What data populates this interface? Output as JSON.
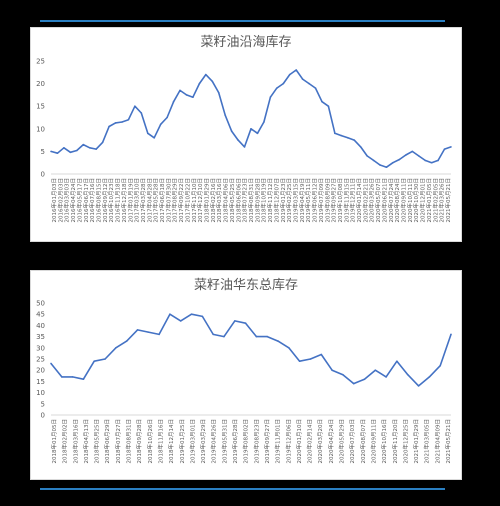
{
  "chart_data": [
    {
      "type": "line",
      "title": "菜籽油沿海库存",
      "ylim": [
        0,
        25
      ],
      "yticks": [
        0,
        5,
        10,
        15,
        20,
        25
      ],
      "grid": false,
      "legend": "none",
      "color": "#4472c4",
      "categories": [
        "2016年01月03日",
        "2016年02月03日",
        "2016年03月03日",
        "2016年04月24日",
        "2016年05月17日",
        "2016年06月17日",
        "2016年07月16日",
        "2016年08月15日",
        "2016年09月12日",
        "2016年10月23日",
        "2016年11月18日",
        "2016年12月18日",
        "2017年01月19日",
        "2017年03月10日",
        "2017年03月28日",
        "2017年04月28日",
        "2017年05月28日",
        "2017年06月18日",
        "2017年07月30日",
        "2017年08月29日",
        "2017年09月22日",
        "2017年10月22日",
        "2017年11月10日",
        "2017年12月10日",
        "2018年01月29日",
        "2018年02月16日",
        "2018年03月16日",
        "2018年04月06日",
        "2018年05月25日",
        "2018年06月06日",
        "2018年07月23日",
        "2018年08月31日",
        "2018年09月28日",
        "2018年10月19日",
        "2018年11月12日",
        "2018年12月07日",
        "2019年01月23日",
        "2019年02月25日",
        "2019年03月15日",
        "2019年04月19日",
        "2019年05月11日",
        "2019年06月12日",
        "2019年07月09日",
        "2019年08月09日",
        "2019年09月27日",
        "2019年10月08日",
        "2019年11月15日",
        "2019年12月11日",
        "2020年01月14日",
        "2020年02月21日",
        "2020年03月26日",
        "2020年05月07日",
        "2020年06月21日",
        "2020年07月24日",
        "2020年08月24日",
        "2020年09月11日",
        "2020年10月11日",
        "2020年10月30日",
        "2020年12月01日",
        "2021年01月05日",
        "2021年02月05日",
        "2021年03月26日",
        "2021年05月21日"
      ],
      "values": [
        5,
        4.6,
        5.8,
        4.8,
        5.2,
        6.5,
        5.8,
        5.5,
        7,
        10.5,
        11.3,
        11.5,
        12,
        15,
        13.5,
        9,
        8,
        11,
        12.5,
        16,
        18.5,
        17.5,
        17,
        20,
        22,
        20.5,
        18,
        13,
        9.5,
        7.5,
        6,
        10,
        9,
        11.5,
        17,
        19,
        20,
        22,
        23,
        21,
        20,
        19,
        16,
        15,
        9,
        8.5,
        8,
        7.5,
        6,
        4,
        3,
        2,
        1.5,
        2.5,
        3.2,
        4.2,
        5,
        4,
        3,
        2.5,
        3,
        5.5,
        6
      ]
    },
    {
      "type": "line",
      "title": "菜籽油华东总库存",
      "ylim": [
        0,
        50
      ],
      "yticks": [
        0,
        5,
        10,
        15,
        20,
        25,
        30,
        35,
        40,
        45,
        50
      ],
      "grid": false,
      "legend": "none",
      "color": "#4472c4",
      "categories": [
        "2018年01月05日",
        "2018年02月02日",
        "2018年03月16日",
        "2018年04月13日",
        "2018年05月25日",
        "2018年06月29日",
        "2018年07月27日",
        "2018年08月31日",
        "2018年09月28日",
        "2018年10月26日",
        "2018年11月16日",
        "2018年12月14日",
        "2019年01月25日",
        "2019年03月01日",
        "2019年03月29日",
        "2019年04月26日",
        "2019年05月31日",
        "2019年06月28日",
        "2019年08月02日",
        "2019年08月23日",
        "2019年09月27日",
        "2019年11月01日",
        "2019年12月06日",
        "2020年01月10日",
        "2020年02月14日",
        "2020年03月20日",
        "2020年04月24日",
        "2020年05月29日",
        "2020年07月03日",
        "2020年08月07日",
        "2020年09月11日",
        "2020年10月16日",
        "2020年11月20日",
        "2020年12月25日",
        "2021年01月29日",
        "2021年03月05日",
        "2021年04月09日",
        "2021年05月21日"
      ],
      "values": [
        23,
        17,
        17,
        16,
        24,
        25,
        30,
        33,
        38,
        37,
        36,
        45,
        42,
        45,
        44,
        36,
        35,
        42,
        41,
        35,
        35,
        33,
        30,
        24,
        25,
        27,
        20,
        18,
        14,
        16,
        20,
        17,
        24,
        18,
        13,
        17,
        22,
        36
      ]
    }
  ]
}
